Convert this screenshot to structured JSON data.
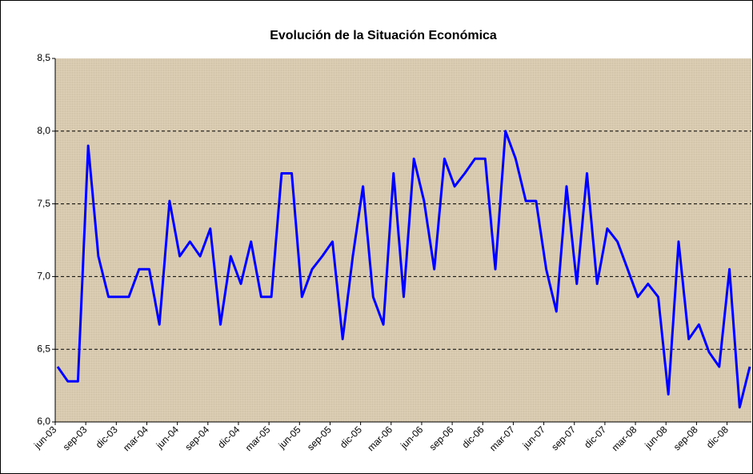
{
  "chart_data": {
    "type": "line",
    "title": "Evolución de la Situación Económica",
    "categories": [
      "jun-03",
      null,
      null,
      "sep-03",
      null,
      null,
      "dic-03",
      null,
      null,
      "mar-04",
      null,
      null,
      "jun-04",
      null,
      null,
      "sep-04",
      null,
      null,
      "dic-04",
      null,
      null,
      "mar-05",
      null,
      null,
      "jun-05",
      null,
      null,
      "sep-05",
      null,
      null,
      "dic-05",
      null,
      null,
      "mar-06",
      null,
      null,
      "jun-06",
      null,
      null,
      "sep-06",
      null,
      null,
      "dic-06",
      null,
      null,
      "mar-07",
      null,
      null,
      "jun-07",
      null,
      null,
      "sep-07",
      null,
      null,
      "dic-07",
      null,
      null,
      "mar-08",
      null,
      null,
      "jun-08",
      null,
      null,
      "sep-08",
      null,
      null,
      "dic-08",
      null,
      null
    ],
    "values": [
      6.38,
      6.28,
      6.28,
      7.9,
      7.14,
      6.86,
      6.86,
      6.86,
      7.05,
      7.05,
      6.67,
      7.52,
      7.14,
      7.24,
      7.14,
      7.33,
      6.67,
      7.14,
      6.95,
      7.24,
      6.86,
      6.86,
      7.71,
      7.71,
      6.86,
      7.05,
      7.14,
      7.24,
      6.57,
      7.14,
      7.62,
      6.86,
      6.67,
      7.71,
      6.86,
      7.81,
      7.52,
      7.05,
      7.81,
      7.62,
      7.71,
      7.81,
      7.81,
      7.05,
      8.0,
      7.81,
      7.52,
      7.52,
      7.05,
      6.76,
      7.62,
      6.95,
      7.71,
      6.95,
      7.33,
      7.24,
      7.05,
      6.86,
      6.95,
      6.86,
      6.19,
      7.24,
      6.57,
      6.67,
      6.48,
      6.38,
      7.05,
      6.1,
      6.38
    ],
    "color": "#0000ff",
    "ylim": [
      6.0,
      8.5
    ],
    "yticks": [
      {
        "value": 6.0,
        "label": "6,0"
      },
      {
        "value": 6.5,
        "label": "6,5"
      },
      {
        "value": 7.0,
        "label": "7,0"
      },
      {
        "value": 7.5,
        "label": "7,5"
      },
      {
        "value": 8.0,
        "label": "8,0"
      },
      {
        "value": 8.5,
        "label": "8,5"
      }
    ],
    "grid": true
  }
}
